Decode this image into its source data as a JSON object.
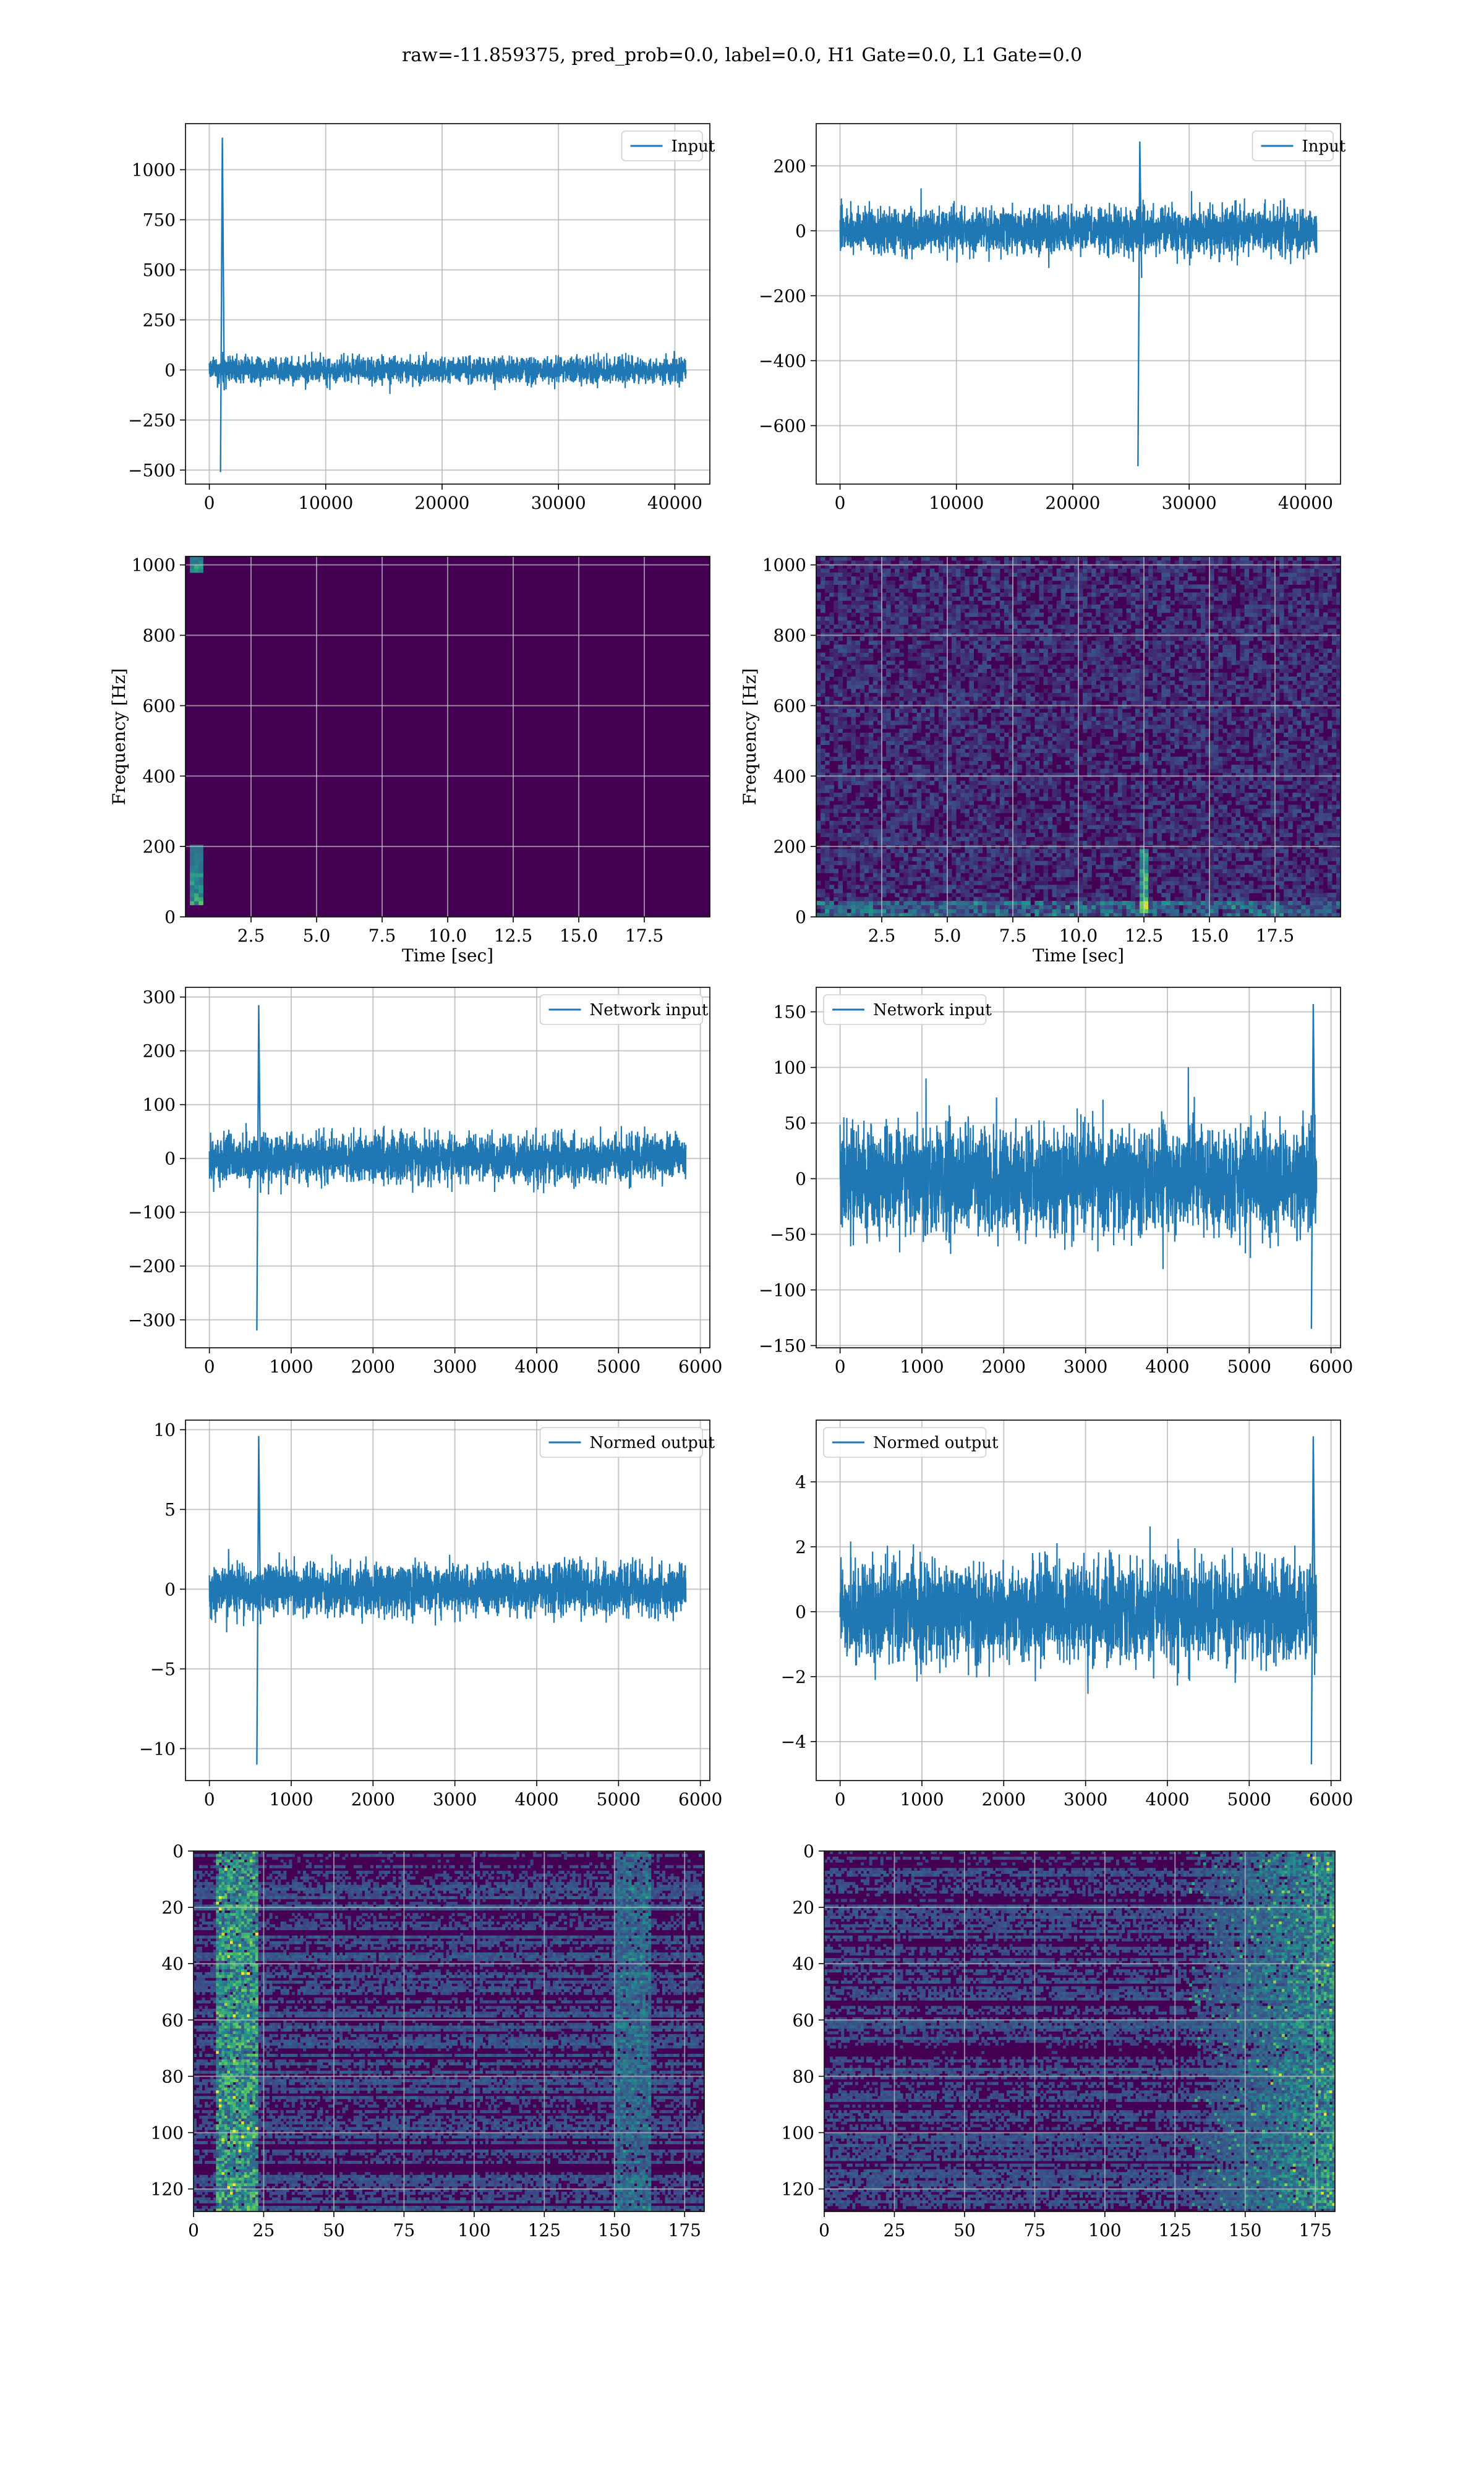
{
  "figure": {
    "suptitle": "raw=-11.859375, pred_prob=0.0, label=0.0, H1 Gate=0.0, L1 Gate=0.0"
  },
  "colors": {
    "line": "#1f77b4",
    "grid": "#b0b0b0",
    "spectrogram_bg": "#440154",
    "viridis_low": "#3b528b",
    "viridis_mid": "#21918c",
    "viridis_high": "#5ec962",
    "viridis_top": "#fde725"
  },
  "chart_data": [
    {
      "id": "input-h1",
      "type": "line",
      "series": [
        {
          "name": "Input",
          "length": 40960,
          "baseline_amplitude": 90,
          "spikes": [
            {
              "x": 960,
              "max": 1160,
              "min": -510
            }
          ]
        }
      ],
      "xlim": [
        -2048,
        43008
      ],
      "ylim": [
        -570,
        1230
      ],
      "xticks": [
        0,
        10000,
        20000,
        30000,
        40000
      ],
      "yticks": [
        -500,
        -250,
        0,
        250,
        500,
        750,
        1000
      ],
      "tick_labels": {
        "x": [
          "0",
          "10000",
          "20000",
          "30000",
          "40000"
        ],
        "y": [
          "−500",
          "−250",
          "0",
          "250",
          "500",
          "750",
          "1000"
        ]
      },
      "legend": "top-right",
      "grid": true
    },
    {
      "id": "input-l1",
      "type": "line",
      "series": [
        {
          "name": "Input",
          "length": 40960,
          "baseline_amplitude": 95,
          "spikes": [
            {
              "x": 25600,
              "max": 275,
              "min": -725
            }
          ]
        }
      ],
      "xlim": [
        -2048,
        43008
      ],
      "ylim": [
        -780,
        330
      ],
      "xticks": [
        0,
        10000,
        20000,
        30000,
        40000
      ],
      "yticks": [
        -600,
        -400,
        -200,
        0,
        200
      ],
      "tick_labels": {
        "x": [
          "0",
          "10000",
          "20000",
          "30000",
          "40000"
        ],
        "y": [
          "−600",
          "−400",
          "−200",
          "0",
          "200"
        ]
      },
      "legend": "top-right",
      "grid": true
    },
    {
      "id": "spec-h1",
      "type": "heatmap",
      "xlabel": "Time [sec]",
      "ylabel": "Frequency [Hz]",
      "xlim": [
        0,
        20
      ],
      "ylim": [
        0,
        1024
      ],
      "xticks": [
        2.5,
        5.0,
        7.5,
        10.0,
        12.5,
        15.0,
        17.5
      ],
      "yticks": [
        0,
        200,
        400,
        600,
        800,
        1000
      ],
      "tick_labels": {
        "x": [
          "2.5",
          "5.0",
          "7.5",
          "10.0",
          "12.5",
          "15.0",
          "17.5"
        ],
        "y": [
          "0",
          "200",
          "400",
          "600",
          "800",
          "1000"
        ]
      },
      "hotspots": [
        {
          "t": 0.4,
          "f_min": 980,
          "f_max": 1024
        },
        {
          "t": 0.4,
          "f_min": 30,
          "f_max": 200
        }
      ],
      "noise_level": 0.02,
      "grid": true
    },
    {
      "id": "spec-l1",
      "type": "heatmap",
      "xlabel": "Time [sec]",
      "ylabel": "Frequency [Hz]",
      "xlim": [
        0,
        20
      ],
      "ylim": [
        0,
        1024
      ],
      "xticks": [
        2.5,
        5.0,
        7.5,
        10.0,
        12.5,
        15.0,
        17.5
      ],
      "yticks": [
        0,
        200,
        400,
        600,
        800,
        1000
      ],
      "tick_labels": {
        "x": [
          "2.5",
          "5.0",
          "7.5",
          "10.0",
          "12.5",
          "15.0",
          "17.5"
        ],
        "y": [
          "0",
          "200",
          "400",
          "600",
          "800",
          "1000"
        ]
      },
      "hotspots": [
        {
          "t": 12.5,
          "f_min": 10,
          "f_max": 190
        }
      ],
      "low_freq_band": [
        0,
        40
      ],
      "noise_level": 0.25,
      "grid": true
    },
    {
      "id": "net-h1",
      "type": "line",
      "series": [
        {
          "name": "Network input",
          "length": 5824,
          "baseline_amplitude": 60,
          "spikes": [
            {
              "x": 580,
              "max": 285,
              "min": -320
            }
          ]
        }
      ],
      "xlim": [
        -292,
        6116
      ],
      "ylim": [
        -352,
        318
      ],
      "xticks": [
        0,
        1000,
        2000,
        3000,
        4000,
        5000,
        6000
      ],
      "yticks": [
        -300,
        -200,
        -100,
        0,
        100,
        200,
        300
      ],
      "tick_labels": {
        "x": [
          "0",
          "1000",
          "2000",
          "3000",
          "4000",
          "5000",
          "6000"
        ],
        "y": [
          "−300",
          "−200",
          "−100",
          "0",
          "100",
          "200",
          "300"
        ]
      },
      "legend": "top-right",
      "grid": true
    },
    {
      "id": "net-l1",
      "type": "line",
      "series": [
        {
          "name": "Network input",
          "length": 5824,
          "baseline_amplitude": 65,
          "spikes": [
            {
              "x": 5760,
              "max": 157,
              "min": -135
            }
          ]
        }
      ],
      "xlim": [
        -292,
        6116
      ],
      "ylim": [
        -152,
        172
      ],
      "xticks": [
        0,
        1000,
        2000,
        3000,
        4000,
        5000,
        6000
      ],
      "yticks": [
        -150,
        -100,
        -50,
        0,
        50,
        100,
        150
      ],
      "tick_labels": {
        "x": [
          "0",
          "1000",
          "2000",
          "3000",
          "4000",
          "5000",
          "6000"
        ],
        "y": [
          "−150",
          "−100",
          "−50",
          "0",
          "50",
          "100",
          "150"
        ]
      },
      "legend": "top-left",
      "grid": true
    },
    {
      "id": "norm-h1",
      "type": "line",
      "series": [
        {
          "name": "Normed output",
          "length": 5824,
          "baseline_amplitude": 2.2,
          "spikes": [
            {
              "x": 580,
              "max": 9.6,
              "min": -11
            }
          ]
        }
      ],
      "xlim": [
        -292,
        6116
      ],
      "ylim": [
        -12,
        10.6
      ],
      "xticks": [
        0,
        1000,
        2000,
        3000,
        4000,
        5000,
        6000
      ],
      "yticks": [
        -10,
        -5,
        0,
        5,
        10
      ],
      "tick_labels": {
        "x": [
          "0",
          "1000",
          "2000",
          "3000",
          "4000",
          "5000",
          "6000"
        ],
        "y": [
          "−10",
          "−5",
          "0",
          "5",
          "10"
        ]
      },
      "legend": "top-right",
      "grid": true
    },
    {
      "id": "norm-l1",
      "type": "line",
      "series": [
        {
          "name": "Normed output",
          "length": 5824,
          "baseline_amplitude": 2.1,
          "spikes": [
            {
              "x": 5760,
              "max": 5.4,
              "min": -4.7
            }
          ]
        }
      ],
      "xlim": [
        -292,
        6116
      ],
      "ylim": [
        -5.2,
        5.9
      ],
      "xticks": [
        0,
        1000,
        2000,
        3000,
        4000,
        5000,
        6000
      ],
      "yticks": [
        -4,
        -2,
        0,
        2,
        4
      ],
      "tick_labels": {
        "x": [
          "0",
          "1000",
          "2000",
          "3000",
          "4000",
          "5000",
          "6000"
        ],
        "y": [
          "−4",
          "−2",
          "0",
          "2",
          "4"
        ]
      },
      "legend": "top-left",
      "grid": true
    },
    {
      "id": "feat-h1",
      "type": "heatmap",
      "xlim": [
        0,
        182
      ],
      "ylim": [
        128,
        0
      ],
      "xticks": [
        0,
        25,
        50,
        75,
        100,
        125,
        150,
        175
      ],
      "yticks": [
        0,
        20,
        40,
        60,
        80,
        100,
        120
      ],
      "tick_labels": {
        "x": [
          "0",
          "25",
          "50",
          "75",
          "100",
          "125",
          "150",
          "175"
        ],
        "y": [
          "0",
          "20",
          "40",
          "60",
          "80",
          "100",
          "120"
        ]
      },
      "active_column_range": [
        8,
        22
      ],
      "secondary_column_range": [
        150,
        162
      ],
      "grid": true
    },
    {
      "id": "feat-l1",
      "type": "heatmap",
      "xlim": [
        0,
        182
      ],
      "ylim": [
        128,
        0
      ],
      "xticks": [
        0,
        25,
        50,
        75,
        100,
        125,
        150,
        175
      ],
      "yticks": [
        0,
        20,
        40,
        60,
        80,
        100,
        120
      ],
      "tick_labels": {
        "x": [
          "0",
          "25",
          "50",
          "75",
          "100",
          "125",
          "150",
          "175"
        ],
        "y": [
          "0",
          "20",
          "40",
          "60",
          "80",
          "100",
          "120"
        ]
      },
      "active_column_range": [
        130,
        182
      ],
      "hot_cell": {
        "col": 178,
        "row": 93
      },
      "grid": true
    }
  ]
}
